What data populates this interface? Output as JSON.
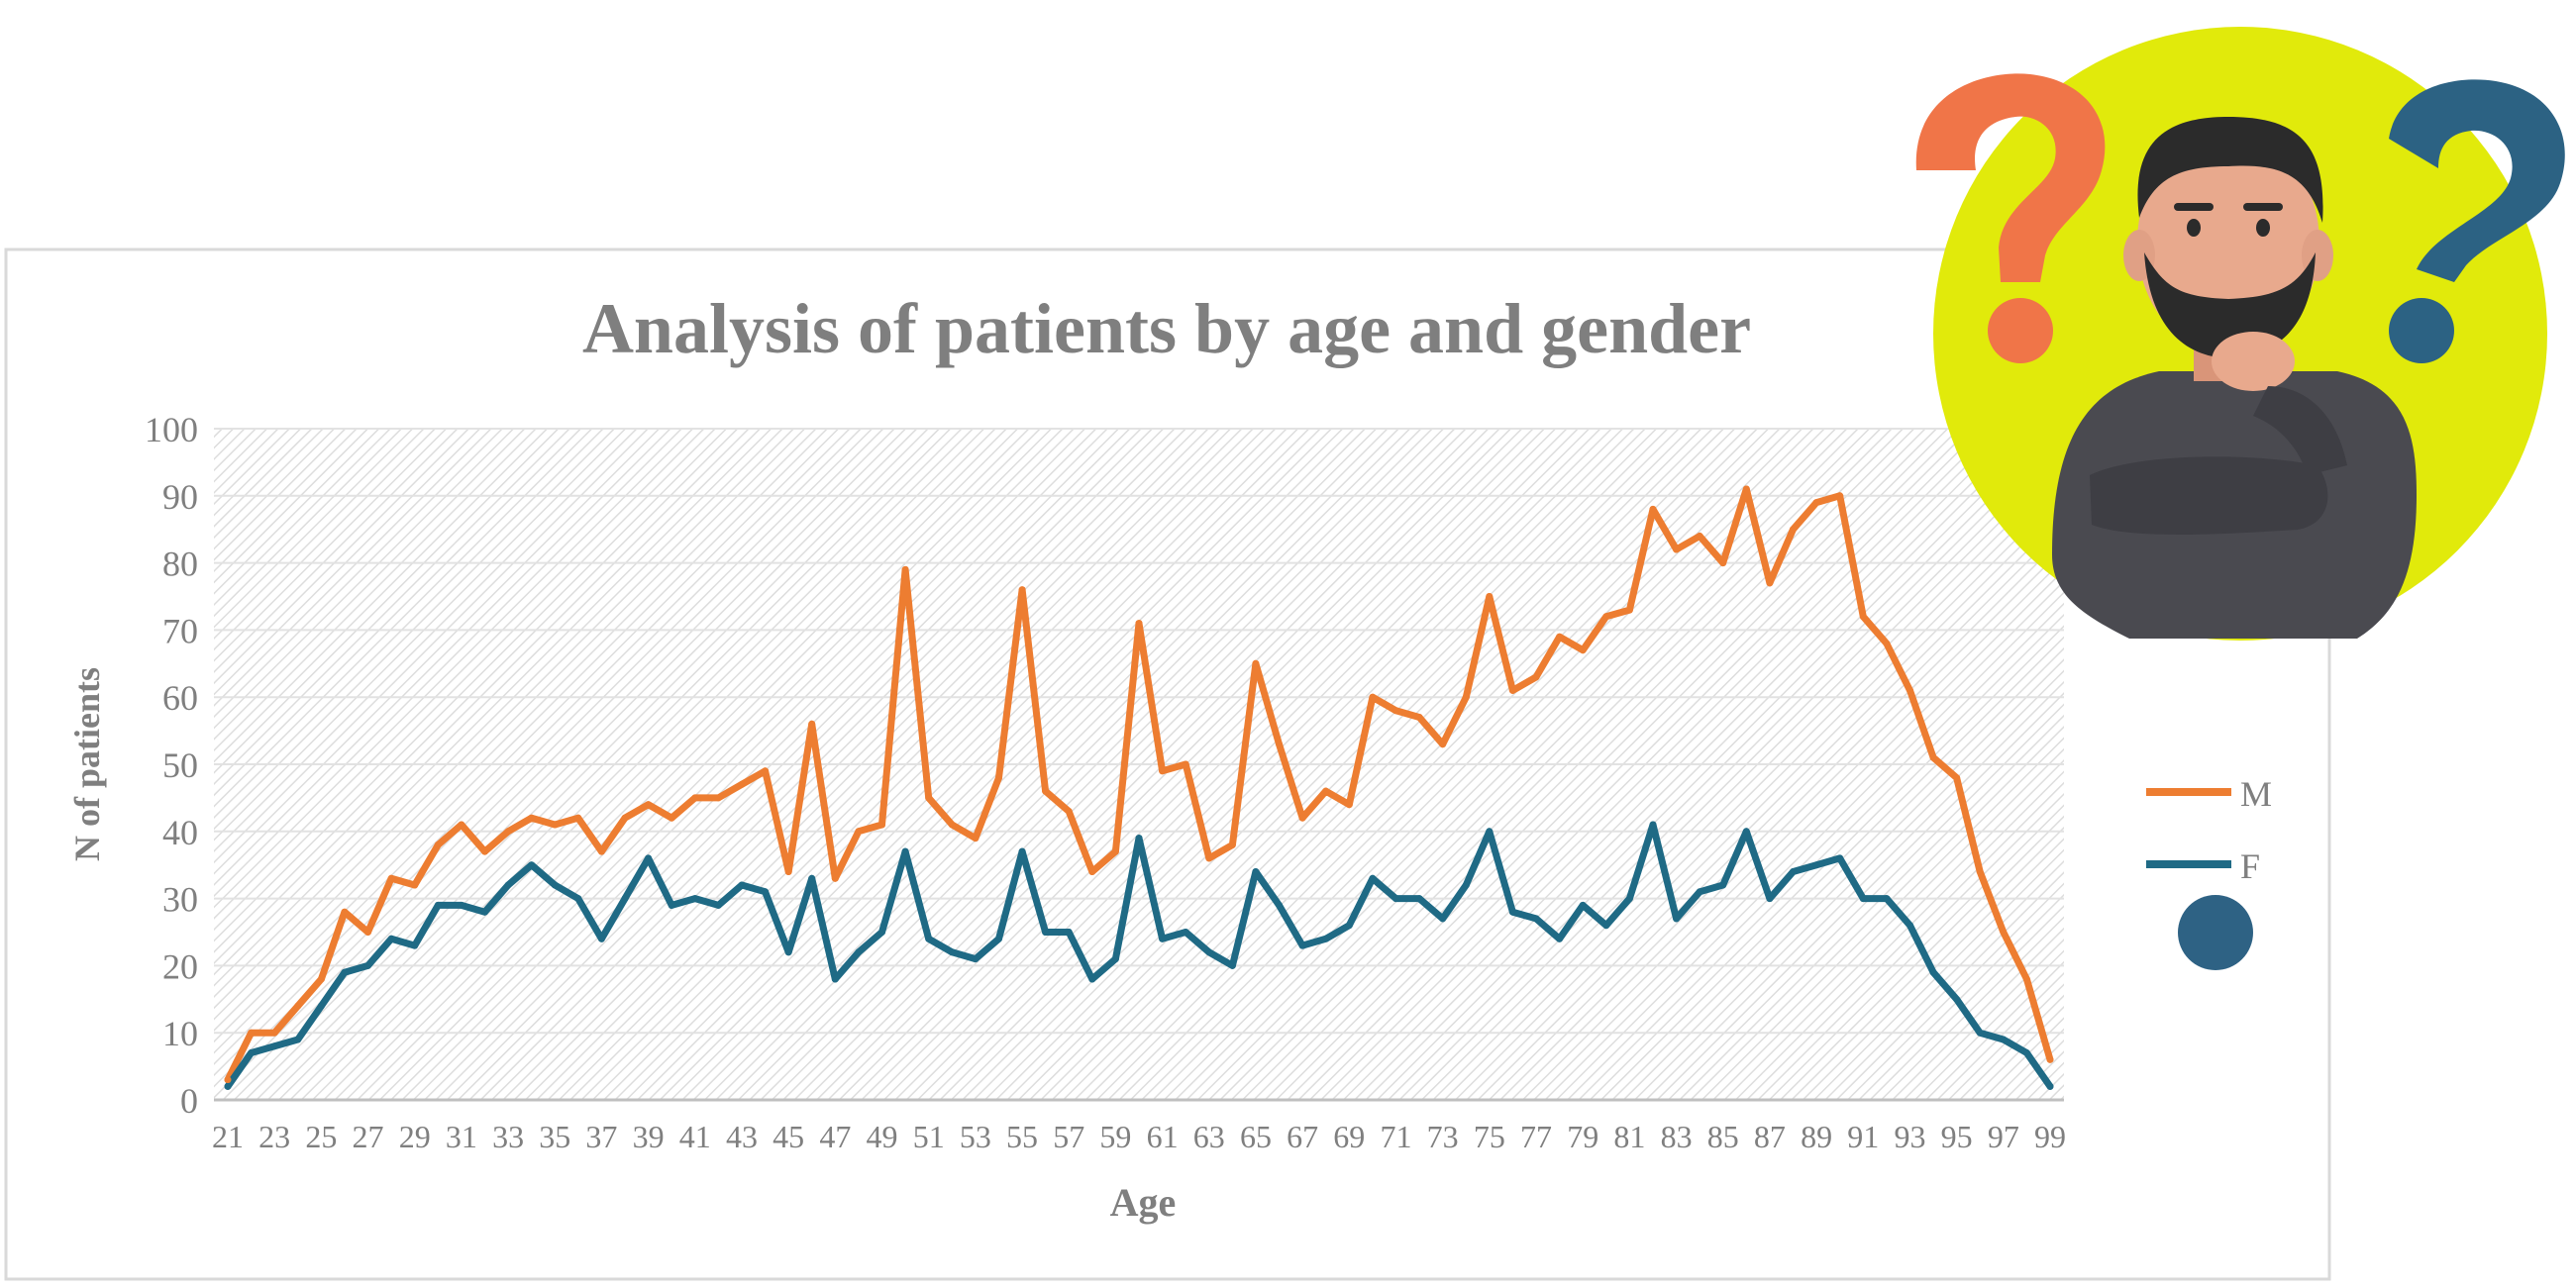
{
  "chart_data": {
    "type": "line",
    "title": "Analysis of patients by age and gender",
    "xlabel": "Age",
    "ylabel": "N of patients",
    "ylim": [
      0,
      100
    ],
    "yticks": [
      0,
      10,
      20,
      30,
      40,
      50,
      60,
      70,
      80,
      90,
      100
    ],
    "xlim": [
      21,
      99
    ],
    "xtick_labels": [
      21,
      23,
      25,
      27,
      29,
      31,
      33,
      35,
      37,
      39,
      41,
      43,
      45,
      47,
      49,
      51,
      53,
      55,
      57,
      59,
      61,
      63,
      65,
      67,
      69,
      71,
      73,
      75,
      77,
      79,
      81,
      83,
      85,
      87,
      89,
      91,
      93,
      95,
      97,
      99
    ],
    "legend_position": "right",
    "x": [
      21,
      22,
      23,
      24,
      25,
      26,
      27,
      28,
      29,
      30,
      31,
      32,
      33,
      34,
      35,
      36,
      37,
      38,
      39,
      40,
      41,
      42,
      43,
      44,
      45,
      46,
      47,
      48,
      49,
      50,
      51,
      52,
      53,
      54,
      55,
      56,
      57,
      58,
      59,
      60,
      61,
      62,
      63,
      64,
      65,
      66,
      67,
      68,
      69,
      70,
      71,
      72,
      73,
      74,
      75,
      76,
      77,
      78,
      79,
      80,
      81,
      82,
      83,
      84,
      85,
      86,
      87,
      88,
      89,
      90,
      91,
      92,
      93,
      94,
      95,
      96,
      97,
      98,
      99
    ],
    "series": [
      {
        "name": "M",
        "color": "#ED7D31",
        "values": [
          3,
          10,
          10,
          14,
          18,
          28,
          25,
          33,
          32,
          38,
          41,
          37,
          40,
          42,
          41,
          42,
          37,
          42,
          44,
          42,
          45,
          45,
          47,
          49,
          34,
          56,
          33,
          40,
          41,
          79,
          45,
          41,
          39,
          48,
          76,
          46,
          43,
          34,
          37,
          71,
          49,
          50,
          36,
          38,
          65,
          53,
          42,
          46,
          44,
          60,
          58,
          57,
          53,
          60,
          75,
          61,
          63,
          69,
          67,
          72,
          73,
          88,
          82,
          84,
          80,
          91,
          77,
          85,
          89,
          90,
          72,
          68,
          61,
          51,
          48,
          34,
          25,
          18,
          6
        ]
      },
      {
        "name": "F",
        "color": "#1F6A85",
        "values": [
          2,
          7,
          8,
          9,
          14,
          19,
          20,
          24,
          23,
          29,
          29,
          28,
          32,
          35,
          32,
          30,
          24,
          30,
          36,
          29,
          30,
          29,
          32,
          31,
          22,
          33,
          18,
          22,
          25,
          37,
          24,
          22,
          21,
          24,
          37,
          25,
          25,
          18,
          21,
          39,
          24,
          25,
          22,
          20,
          34,
          29,
          23,
          24,
          26,
          33,
          30,
          30,
          27,
          32,
          40,
          28,
          27,
          24,
          29,
          26,
          30,
          41,
          27,
          31,
          32,
          40,
          30,
          34,
          35,
          36,
          30,
          30,
          26,
          19,
          15,
          10,
          9,
          7,
          2
        ]
      }
    ]
  },
  "legend_marker": {
    "shape": "circle",
    "color": "#2E6284"
  },
  "illustration": {
    "subject": "thinking-man-with-question-marks",
    "background_color": "#E1EA0B",
    "question_mark_colors": [
      "#F07548",
      "#2C6283"
    ],
    "shirt_color": "#4A4A50",
    "skin_color": "#E8A98D",
    "hair_color": "#2B2B2B"
  }
}
